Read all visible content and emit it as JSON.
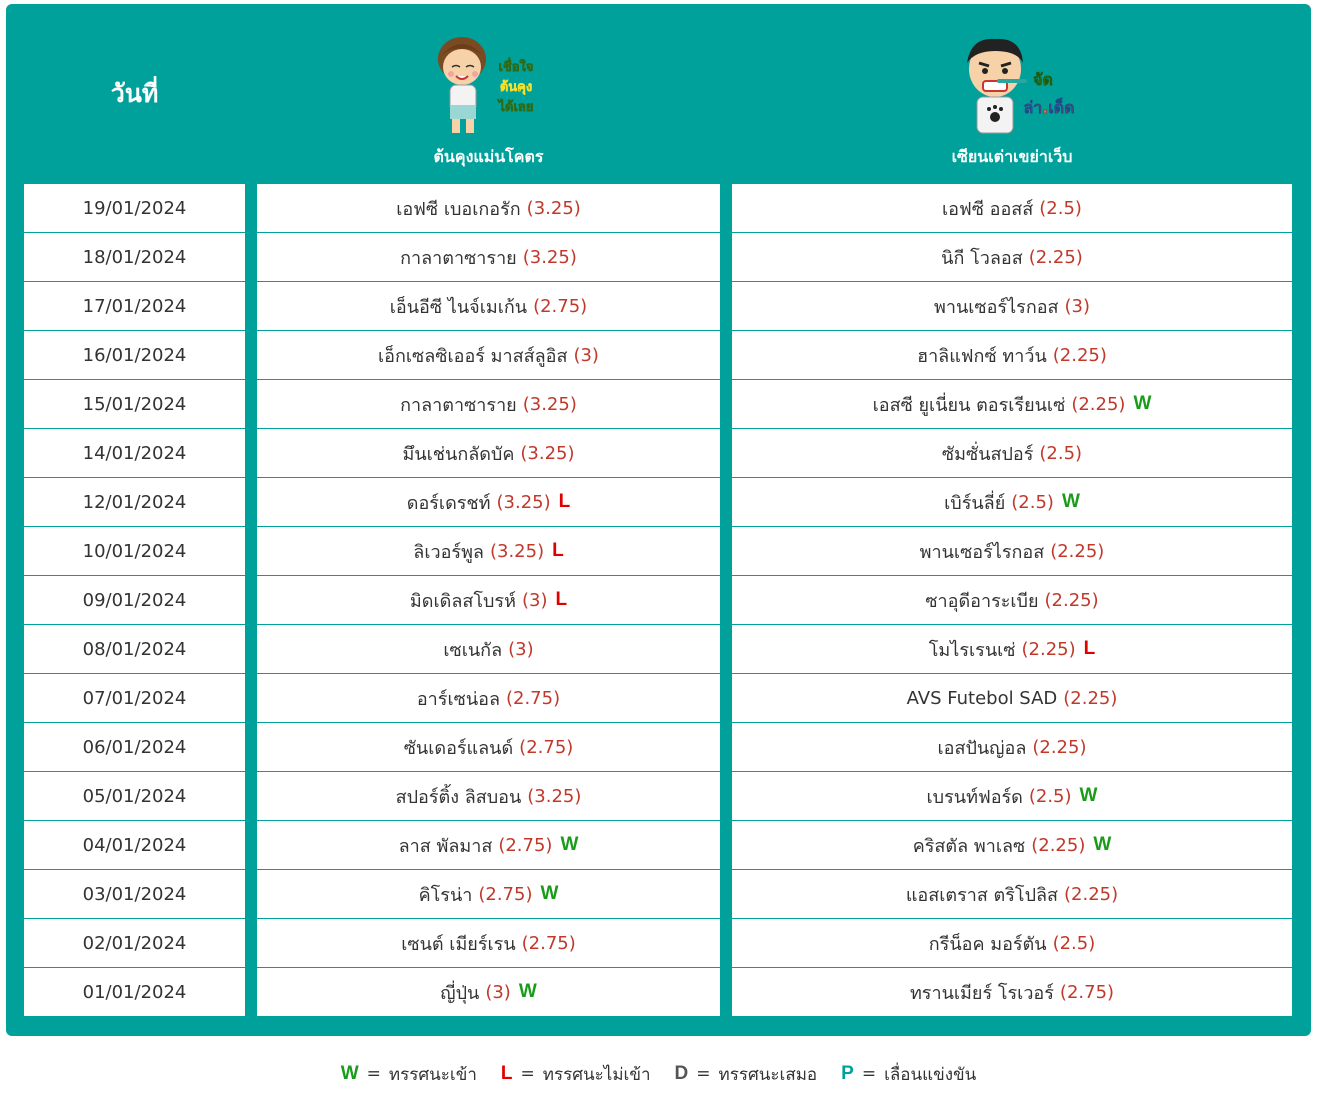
{
  "header": {
    "date_label": "วันที่",
    "col1_name": "ต้นคุงแม่นโคตร",
    "col2_name": "เซียนเต่าเขย่าเว็บ",
    "col1_sticker_text": "เชื่อใจ ต้นคุง ได้เลย",
    "col2_sticker_text": "จัด ล่า.เด็ด"
  },
  "rows": [
    {
      "date": "19/01/2024",
      "t1": "เอฟซี เบอเกอรัก",
      "o1": "(3.25)",
      "r1": "",
      "t2": "เอฟซี ออสส์",
      "o2": "(2.5)",
      "r2": ""
    },
    {
      "date": "18/01/2024",
      "t1": "กาลาตาซาราย",
      "o1": "(3.25)",
      "r1": "",
      "t2": "นิกี โวลอส",
      "o2": "(2.25)",
      "r2": ""
    },
    {
      "date": "17/01/2024",
      "t1": "เอ็นอีซี ไนจ์เมเก้น",
      "o1": "(2.75)",
      "r1": "",
      "t2": "พานเซอร์ไรกอส",
      "o2": "(3)",
      "r2": ""
    },
    {
      "date": "16/01/2024",
      "t1": "เอ็กเซลซิเออร์ มาสส์ลูอิส",
      "o1": "(3)",
      "r1": "",
      "t2": "ฮาลิแฟกซ์ ทาว์น",
      "o2": "(2.25)",
      "r2": ""
    },
    {
      "date": "15/01/2024",
      "t1": "กาลาตาซาราย",
      "o1": "(3.25)",
      "r1": "",
      "t2": "เอสซี ยูเนี่ยน ตอรเรียนเซ่",
      "o2": "(2.25)",
      "r2": "W"
    },
    {
      "date": "14/01/2024",
      "t1": "มึนเช่นกลัดบัค",
      "o1": "(3.25)",
      "r1": "",
      "t2": "ซัมซั่นสปอร์",
      "o2": "(2.5)",
      "r2": ""
    },
    {
      "date": "12/01/2024",
      "t1": "ดอร์เดรชท์",
      "o1": "(3.25)",
      "r1": "L",
      "t2": "เบิร์นลี่ย์",
      "o2": "(2.5)",
      "r2": "W"
    },
    {
      "date": "10/01/2024",
      "t1": "ลิเวอร์พูล",
      "o1": "(3.25)",
      "r1": "L",
      "t2": "พานเซอร์ไรกอส",
      "o2": "(2.25)",
      "r2": ""
    },
    {
      "date": "09/01/2024",
      "t1": "มิดเดิลสโบรห์",
      "o1": "(3)",
      "r1": "L",
      "t2": "ซาอุดีอาระเบีย",
      "o2": "(2.25)",
      "r2": ""
    },
    {
      "date": "08/01/2024",
      "t1": "เซเนกัล",
      "o1": "(3)",
      "r1": "",
      "t2": "โมไรเรนเซ่",
      "o2": "(2.25)",
      "r2": "L"
    },
    {
      "date": "07/01/2024",
      "t1": "อาร์เซน่อล",
      "o1": "(2.75)",
      "r1": "",
      "t2": "AVS Futebol SAD",
      "o2": "(2.25)",
      "r2": ""
    },
    {
      "date": "06/01/2024",
      "t1": "ซันเดอร์แลนด์",
      "o1": "(2.75)",
      "r1": "",
      "t2": "เอสปันญ่อล",
      "o2": "(2.25)",
      "r2": ""
    },
    {
      "date": "05/01/2024",
      "t1": "สปอร์ติ้ง ลิสบอน",
      "o1": "(3.25)",
      "r1": "",
      "t2": "เบรนท์ฟอร์ด",
      "o2": "(2.5)",
      "r2": "W"
    },
    {
      "date": "04/01/2024",
      "t1": "ลาส พัลมาส",
      "o1": "(2.75)",
      "r1": "W",
      "t2": "คริสตัล พาเลซ",
      "o2": "(2.25)",
      "r2": "W"
    },
    {
      "date": "03/01/2024",
      "t1": "คิโรน่า",
      "o1": "(2.75)",
      "r1": "W",
      "t2": "แอสเตราส ตริโปลิส",
      "o2": "(2.25)",
      "r2": ""
    },
    {
      "date": "02/01/2024",
      "t1": "เซนต์ เมียร์เรน",
      "o1": "(2.75)",
      "r1": "",
      "t2": "กรีน็อค มอร์ตัน",
      "o2": "(2.5)",
      "r2": ""
    },
    {
      "date": "01/01/2024",
      "t1": "ญี่ปุ่น",
      "o1": "(3)",
      "r1": "W",
      "t2": "ทรานเมียร์ โรเวอร์",
      "o2": "(2.75)",
      "r2": ""
    }
  ],
  "legend": [
    {
      "key": "W",
      "eq": "=",
      "label": "ทรรศนะเข้า",
      "color": "#1a9c1a"
    },
    {
      "key": "L",
      "eq": "=",
      "label": "ทรรศนะไม่เข้า",
      "color": "#e10000"
    },
    {
      "key": "D",
      "eq": "=",
      "label": "ทรรศนะเสมอ",
      "color": "#555555"
    },
    {
      "key": "P",
      "eq": "=",
      "label": "เลื่อนแข่งขัน",
      "color": "#00a19b"
    }
  ],
  "colors": {
    "panel": "#00a19b",
    "odds": "#c0392b",
    "win": "#1a9c1a",
    "loss": "#e10000"
  }
}
